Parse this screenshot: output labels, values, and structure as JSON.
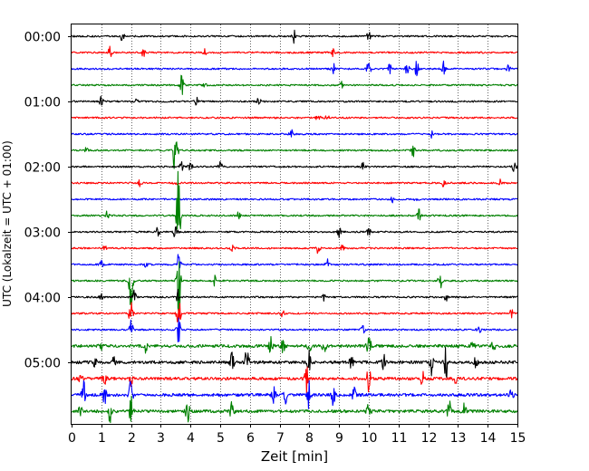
{
  "chart_data": {
    "type": "line",
    "title": "",
    "xlabel": "Zeit  [min]",
    "ylabel": "UTC (Lokalzeit = UTC + 01:00)",
    "xlim": [
      0,
      15
    ],
    "x_ticks": [
      "0",
      "1",
      "2",
      "3",
      "4",
      "5",
      "6",
      "7",
      "8",
      "9",
      "10",
      "11",
      "12",
      "13",
      "14",
      "15"
    ],
    "y_tick_labels": [
      "00:00",
      "01:00",
      "02:00",
      "03:00",
      "04:00",
      "05:00"
    ],
    "trace_interval_min": 15,
    "trace_count": 24,
    "grid_x": true,
    "grid_style": "dotted",
    "trace_colors": [
      "#000000",
      "#ff0000",
      "#0000ff",
      "#008000"
    ],
    "traces": [
      {
        "start": "00:00",
        "color": "#000000",
        "events": [
          [
            1.7,
            6
          ],
          [
            7.5,
            9
          ],
          [
            10.0,
            5
          ]
        ]
      },
      {
        "start": "00:15",
        "color": "#ff0000",
        "events": [
          [
            1.3,
            7
          ],
          [
            2.4,
            6
          ],
          [
            4.5,
            4
          ],
          [
            8.8,
            4
          ]
        ]
      },
      {
        "start": "00:30",
        "color": "#0000ff",
        "events": [
          [
            8.8,
            8
          ],
          [
            10.0,
            10
          ],
          [
            10.7,
            5
          ],
          [
            11.3,
            8
          ],
          [
            11.6,
            12
          ],
          [
            12.5,
            9
          ],
          [
            14.7,
            5
          ]
        ]
      },
      {
        "start": "00:45",
        "color": "#008000",
        "events": [
          [
            3.7,
            14
          ],
          [
            4.5,
            3
          ],
          [
            9.1,
            4
          ]
        ]
      },
      {
        "start": "01:00",
        "color": "#000000",
        "events": [
          [
            1.0,
            7
          ],
          [
            2.2,
            3
          ],
          [
            4.2,
            5
          ],
          [
            6.3,
            5
          ]
        ]
      },
      {
        "start": "01:15",
        "color": "#ff0000",
        "events": [
          [
            8.3,
            6
          ],
          [
            8.6,
            4
          ]
        ]
      },
      {
        "start": "01:30",
        "color": "#0000ff",
        "events": [
          [
            7.4,
            5
          ],
          [
            12.1,
            4
          ]
        ]
      },
      {
        "start": "01:45",
        "color": "#008000",
        "events": [
          [
            0.5,
            3
          ],
          [
            11.5,
            7
          ],
          [
            3.5,
            64
          ]
        ]
      },
      {
        "start": "02:00",
        "color": "#000000",
        "events": [
          [
            3.7,
            5
          ],
          [
            4.0,
            6
          ],
          [
            5.0,
            6
          ],
          [
            9.8,
            4
          ],
          [
            14.9,
            8
          ]
        ]
      },
      {
        "start": "02:15",
        "color": "#ff0000",
        "events": [
          [
            2.3,
            4
          ],
          [
            3.5,
            3
          ],
          [
            12.5,
            4
          ],
          [
            14.4,
            4
          ]
        ]
      },
      {
        "start": "02:30",
        "color": "#0000ff",
        "events": [
          [
            10.8,
            3
          ],
          [
            11.6,
            3
          ]
        ]
      },
      {
        "start": "02:45",
        "color": "#008000",
        "events": [
          [
            1.2,
            5
          ],
          [
            5.6,
            5
          ],
          [
            11.7,
            8
          ],
          [
            3.6,
            60
          ]
        ]
      },
      {
        "start": "03:00",
        "color": "#000000",
        "events": [
          [
            2.9,
            5
          ],
          [
            9.0,
            6
          ],
          [
            10.0,
            4
          ],
          [
            3.5,
            12
          ]
        ]
      },
      {
        "start": "03:15",
        "color": "#ff0000",
        "events": [
          [
            1.1,
            4
          ],
          [
            5.4,
            4
          ],
          [
            8.3,
            6
          ],
          [
            9.1,
            5
          ]
        ]
      },
      {
        "start": "03:30",
        "color": "#0000ff",
        "events": [
          [
            1.0,
            4
          ],
          [
            2.5,
            3
          ],
          [
            8.6,
            7
          ],
          [
            3.6,
            14
          ]
        ]
      },
      {
        "start": "03:45",
        "color": "#008000",
        "events": [
          [
            4.8,
            6
          ],
          [
            12.4,
            12
          ],
          [
            2.0,
            48
          ],
          [
            3.6,
            48
          ]
        ]
      },
      {
        "start": "04:00",
        "color": "#000000",
        "events": [
          [
            1.0,
            3
          ],
          [
            8.5,
            4
          ],
          [
            12.6,
            4
          ],
          [
            2.1,
            10
          ],
          [
            3.6,
            10
          ]
        ]
      },
      {
        "start": "04:15",
        "color": "#ff0000",
        "events": [
          [
            7.1,
            5
          ],
          [
            14.8,
            6
          ],
          [
            2.0,
            20
          ],
          [
            3.6,
            20
          ]
        ]
      },
      {
        "start": "04:30",
        "color": "#0000ff",
        "events": [
          [
            9.8,
            5
          ],
          [
            13.7,
            5
          ],
          [
            2.0,
            16
          ],
          [
            3.6,
            16
          ]
        ]
      },
      {
        "start": "04:45",
        "color": "#008000",
        "events": [
          [
            2.5,
            8
          ],
          [
            6.7,
            12
          ],
          [
            7.1,
            9
          ],
          [
            8.0,
            7
          ],
          [
            8.5,
            8
          ],
          [
            10.0,
            18
          ],
          [
            13.5,
            6
          ],
          [
            14.2,
            6
          ],
          [
            1.0,
            4
          ]
        ]
      },
      {
        "start": "05:00",
        "color": "#000000",
        "events": [
          [
            0.8,
            6
          ],
          [
            1.4,
            8
          ],
          [
            5.4,
            14
          ],
          [
            5.9,
            18
          ],
          [
            8.0,
            12
          ],
          [
            9.4,
            10
          ],
          [
            10.5,
            9
          ],
          [
            12.1,
            16
          ],
          [
            12.6,
            18
          ],
          [
            13.6,
            8
          ]
        ]
      },
      {
        "start": "05:15",
        "color": "#ff0000",
        "events": [
          [
            0.3,
            4
          ],
          [
            1.1,
            8
          ],
          [
            2.0,
            8
          ],
          [
            7.9,
            16
          ],
          [
            10.0,
            16
          ],
          [
            11.8,
            8
          ],
          [
            12.9,
            7
          ]
        ]
      },
      {
        "start": "05:30",
        "color": "#0000ff",
        "events": [
          [
            0.4,
            22
          ],
          [
            1.1,
            14
          ],
          [
            2.0,
            22
          ],
          [
            6.8,
            8
          ],
          [
            7.2,
            9
          ],
          [
            8.0,
            20
          ],
          [
            8.8,
            16
          ],
          [
            9.5,
            8
          ],
          [
            14.8,
            6
          ]
        ]
      },
      {
        "start": "05:45",
        "color": "#008000",
        "events": [
          [
            0.3,
            6
          ],
          [
            1.3,
            14
          ],
          [
            2.0,
            16
          ],
          [
            3.9,
            14
          ],
          [
            5.4,
            12
          ],
          [
            10.0,
            14
          ],
          [
            12.7,
            12
          ],
          [
            13.2,
            16
          ]
        ]
      }
    ]
  }
}
